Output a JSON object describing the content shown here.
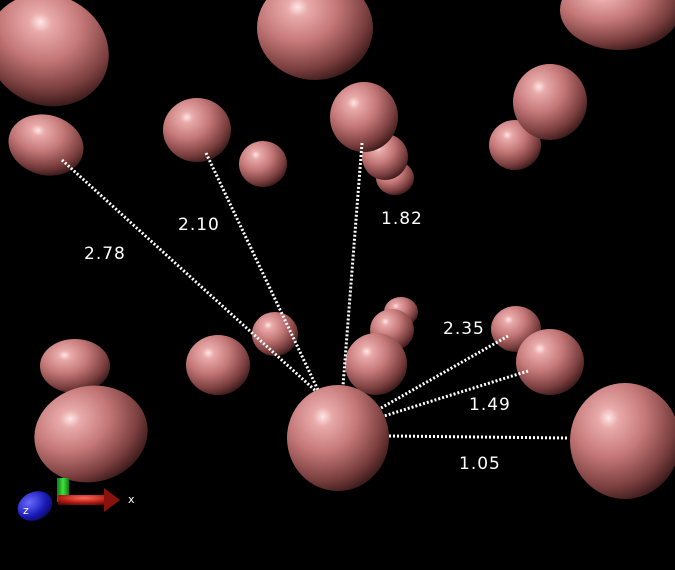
{
  "viewer": {
    "background_color": "#000000",
    "atom_color": "#c77a7a",
    "bond_line_color": "#ffffff"
  },
  "distances": [
    {
      "id": "d1",
      "label": "2.78"
    },
    {
      "id": "d2",
      "label": "2.10"
    },
    {
      "id": "d3",
      "label": "1.82"
    },
    {
      "id": "d4",
      "label": "2.35"
    },
    {
      "id": "d5",
      "label": "1.49"
    },
    {
      "id": "d6",
      "label": "1.05"
    }
  ],
  "axes": {
    "x_label": "x",
    "z_label": "z",
    "x_color": "#c8221a",
    "y_color": "#1fb01f",
    "z_color": "#1a22c8"
  }
}
